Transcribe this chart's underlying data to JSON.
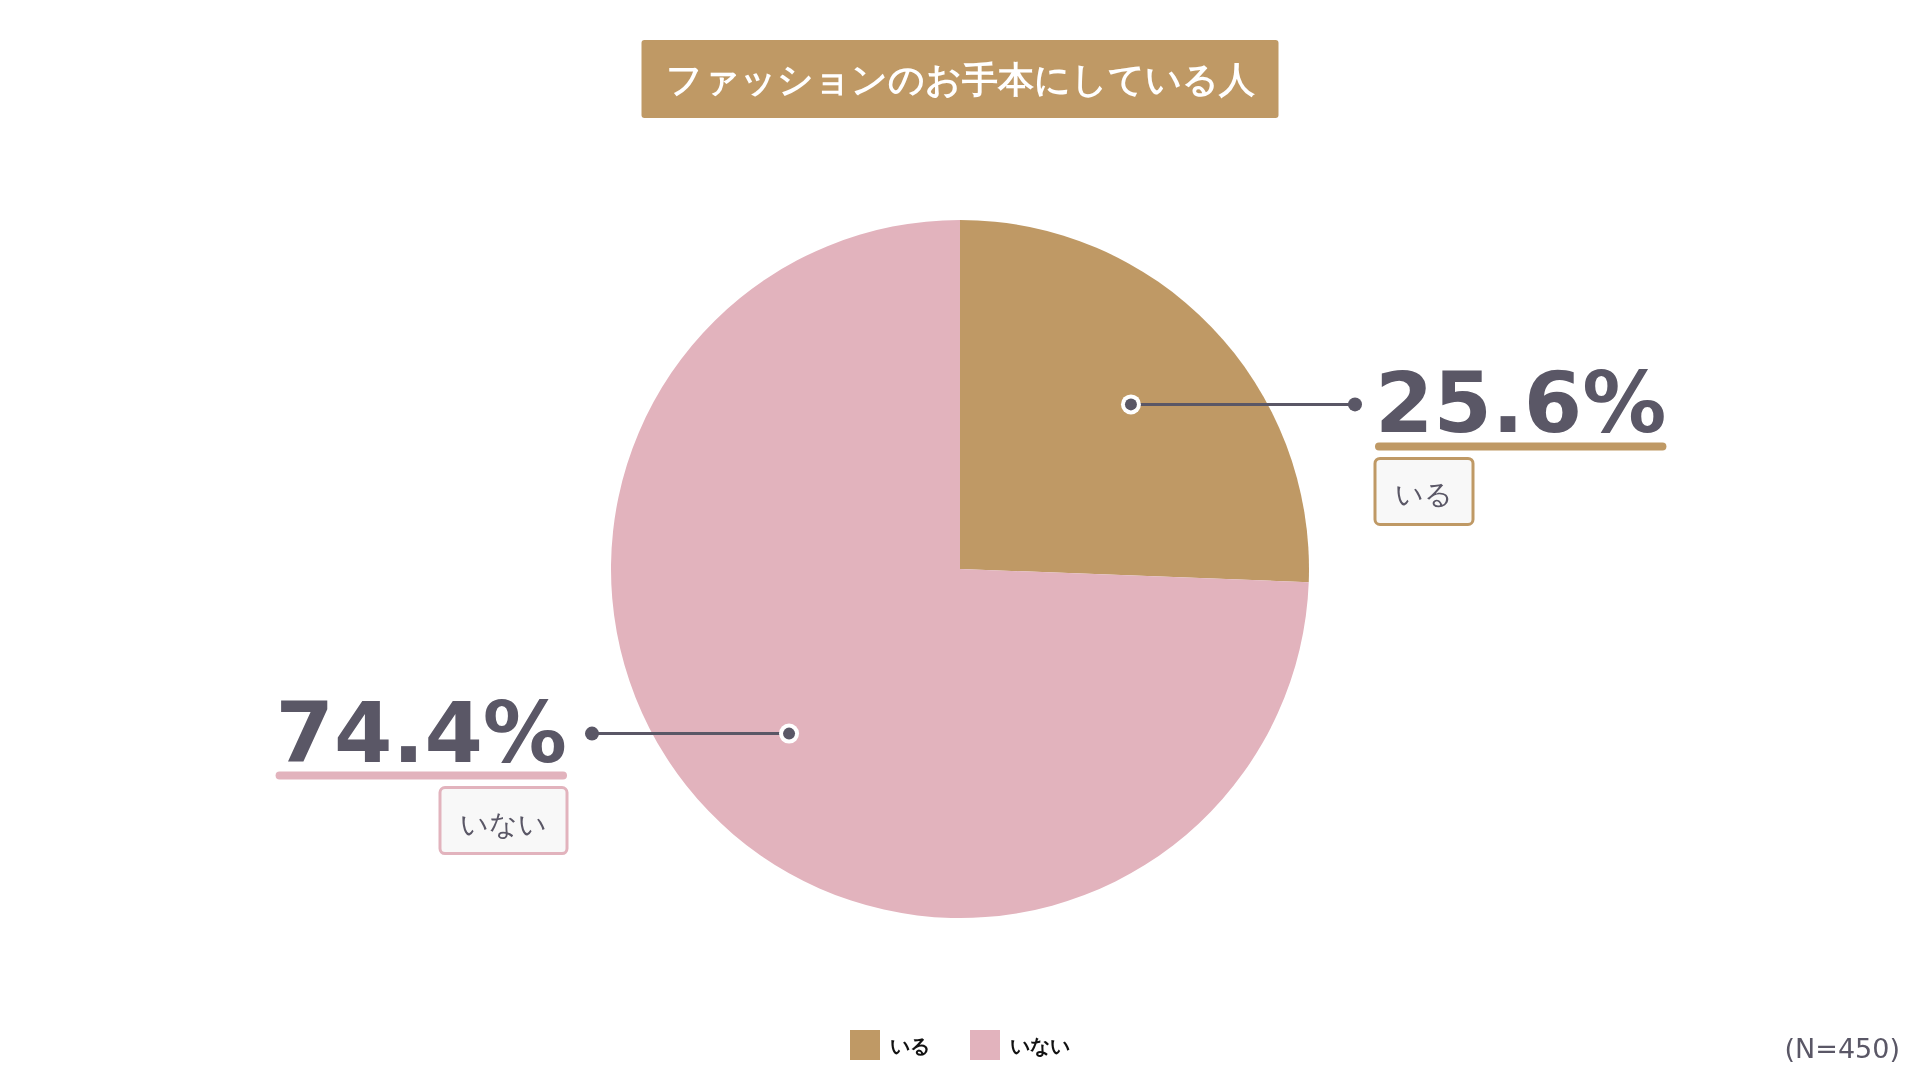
{
  "chart_data": {
    "type": "pie",
    "title": "ファッションのお手本にしている人",
    "categories": [
      "いる",
      "いない"
    ],
    "values": [
      25.6,
      74.4
    ],
    "colors": [
      "#bf9965",
      "#e2b3bd"
    ],
    "value_labels": [
      "25.6%",
      "74.4%"
    ],
    "legend": "bottom",
    "annotations": [
      "(N=450)"
    ]
  }
}
